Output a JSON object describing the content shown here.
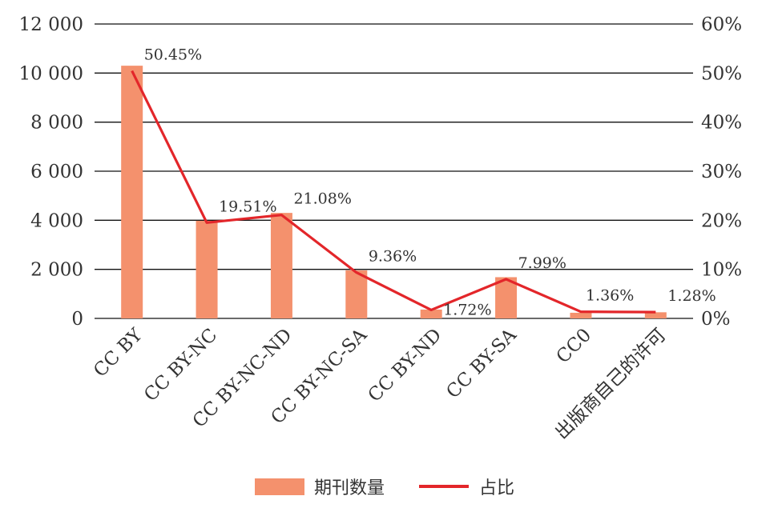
{
  "chart_data": {
    "type": "bar",
    "categories": [
      "CC BY",
      "CC BY-NC",
      "CC BY-NC-ND",
      "CC BY-NC-SA",
      "CC BY-ND",
      "CC BY-SA",
      "CC0",
      "出版商自己的许可"
    ],
    "series": [
      {
        "name": "期刊数量",
        "type": "bar",
        "axis": "left",
        "values": [
          10300,
          3980,
          4300,
          1960,
          360,
          1680,
          230,
          250
        ]
      },
      {
        "name": "占比",
        "type": "line",
        "axis": "right",
        "values": [
          50.45,
          19.51,
          21.08,
          9.36,
          1.72,
          7.99,
          1.36,
          1.28
        ]
      }
    ],
    "data_labels": [
      "50.45%",
      "19.51%",
      "21.08%",
      "9.36%",
      "1.72%",
      "7.99%",
      "1.36%",
      "1.28%"
    ],
    "y_left": {
      "ylim": [
        0,
        12000
      ],
      "ticks": [
        0,
        2000,
        4000,
        6000,
        8000,
        10000,
        12000
      ],
      "tick_labels": [
        "0",
        "2 000",
        "4 000",
        "6 000",
        "8 000",
        "10 000",
        "12 000"
      ]
    },
    "y_right": {
      "ylim": [
        0,
        60
      ],
      "ticks": [
        0,
        10,
        20,
        30,
        40,
        50,
        60
      ],
      "tick_labels": [
        "0%",
        "10%",
        "20%",
        "30%",
        "40%",
        "50%",
        "60%"
      ]
    },
    "grid": true,
    "legend": "bottom",
    "colors": {
      "bar": "#f4916d",
      "line": "#e3262a",
      "grid": "#111111",
      "text": "#333333"
    }
  }
}
